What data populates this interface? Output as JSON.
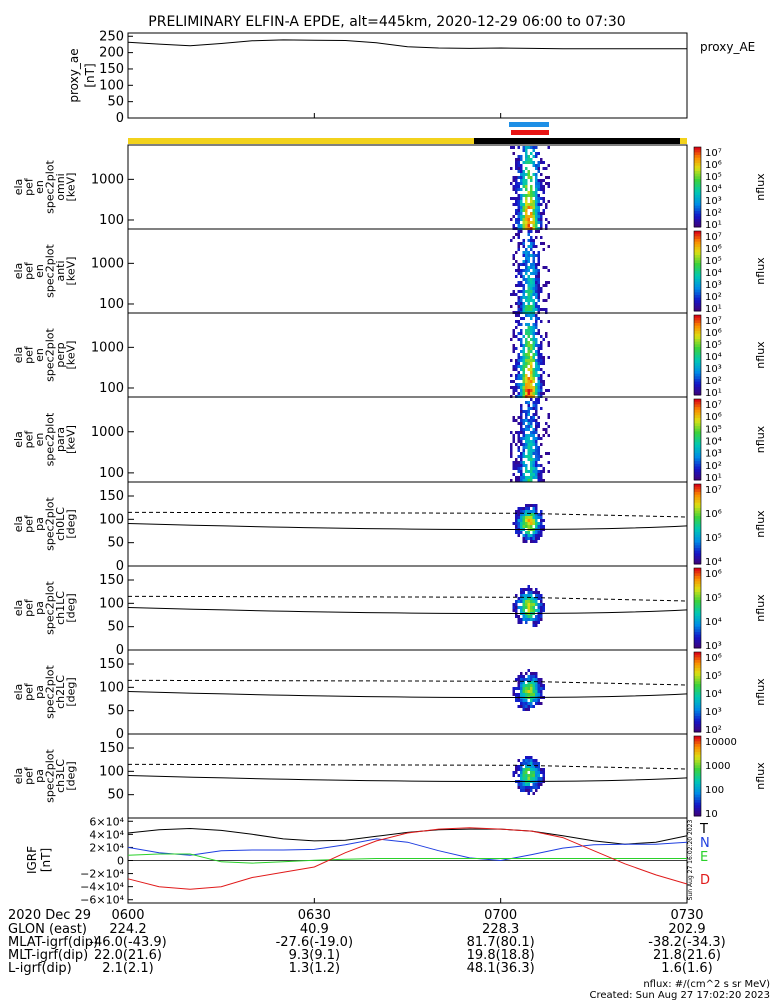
{
  "title": "PRELIMINARY ELFIN-A EPDE, alt=445km, 2020-12-29 06:00 to 07:30",
  "colors": {
    "status_yellow": "#f2d21c",
    "status_black": "#000000",
    "marker_blue": "#1e8fe6",
    "marker_red": "#e81414",
    "trace_black": "#000000",
    "trace_blue": "#1f3ee0",
    "trace_green": "#2ad12a",
    "trace_red": "#e01a1a"
  },
  "chart_data": [
    {
      "type": "line",
      "id": "proxy_ae",
      "ylabel": [
        "proxy_ae",
        "[nT]"
      ],
      "yticks": [
        "250",
        "200",
        "150",
        "100",
        "50",
        "0"
      ],
      "ylim": [
        0,
        260
      ],
      "legend": "proxy_AE",
      "x": [
        0,
        5,
        10,
        15,
        20,
        25,
        30,
        35,
        40,
        45,
        50,
        55,
        60,
        65,
        70,
        75,
        80,
        85,
        90
      ],
      "values": [
        232,
        226,
        221,
        228,
        236,
        239,
        238,
        237,
        230,
        218,
        214,
        213,
        214,
        213,
        212,
        212,
        212,
        212,
        212
      ]
    },
    {
      "type": "heatmap",
      "id": "spec_omni",
      "ylabel": [
        "ela",
        "pef",
        "en",
        "spec2plot",
        "omni",
        "[keV]"
      ],
      "yticks": [
        "1000",
        "100"
      ],
      "ylog": true,
      "colorbar": [
        "10⁷",
        "10⁶",
        "10⁵",
        "10⁴",
        "10³",
        "10²",
        "10¹"
      ],
      "colorbar_label": "nflux"
    },
    {
      "type": "heatmap",
      "id": "spec_anti",
      "ylabel": [
        "ela",
        "pef",
        "en",
        "spec2plot",
        "anti",
        "[keV]"
      ],
      "yticks": [
        "1000",
        "100"
      ],
      "ylog": true,
      "colorbar": [
        "10⁷",
        "10⁶",
        "10⁵",
        "10⁴",
        "10³",
        "10²",
        "10¹"
      ],
      "colorbar_label": "nflux"
    },
    {
      "type": "heatmap",
      "id": "spec_perp",
      "ylabel": [
        "ela",
        "pef",
        "en",
        "spec2plot",
        "perp",
        "[keV]"
      ],
      "yticks": [
        "1000",
        "100"
      ],
      "ylog": true,
      "colorbar": [
        "10⁷",
        "10⁶",
        "10⁵",
        "10⁴",
        "10³",
        "10²",
        "10¹"
      ],
      "colorbar_label": "nflux"
    },
    {
      "type": "heatmap",
      "id": "spec_para",
      "ylabel": [
        "ela",
        "pef",
        "en",
        "spec2plot",
        "para",
        "[keV]"
      ],
      "yticks": [
        "1000",
        "100"
      ],
      "ylog": true,
      "colorbar": [
        "10⁷",
        "10⁶",
        "10⁵",
        "10⁴",
        "10³",
        "10²",
        "10¹"
      ],
      "colorbar_label": "nflux"
    },
    {
      "type": "heatmap",
      "id": "pa_ch0",
      "ylabel": [
        "ela",
        "pef",
        "pa",
        "spec2plot",
        "ch0LC",
        "[deg]"
      ],
      "yticks": [
        "150",
        "100",
        "50",
        "0"
      ],
      "ylim": [
        0,
        180
      ],
      "colorbar": [
        "10⁷",
        "10⁶",
        "10⁵",
        "10⁴"
      ],
      "colorbar_label": "nflux"
    },
    {
      "type": "heatmap",
      "id": "pa_ch1",
      "ylabel": [
        "ela",
        "pef",
        "pa",
        "spec2plot",
        "ch1LC",
        "[deg]"
      ],
      "yticks": [
        "150",
        "100",
        "50",
        "0"
      ],
      "ylim": [
        0,
        180
      ],
      "colorbar": [
        "10⁶",
        "10⁵",
        "10⁴",
        "10³"
      ],
      "colorbar_label": "nflux"
    },
    {
      "type": "heatmap",
      "id": "pa_ch2",
      "ylabel": [
        "ela",
        "pef",
        "pa",
        "spec2plot",
        "ch2LC",
        "[deg]"
      ],
      "yticks": [
        "150",
        "100",
        "50",
        "0"
      ],
      "ylim": [
        0,
        180
      ],
      "colorbar": [
        "10⁶",
        "10⁵",
        "10⁴",
        "10³",
        "10²"
      ],
      "colorbar_label": "nflux"
    },
    {
      "type": "heatmap",
      "id": "pa_ch3",
      "ylabel": [
        "ela",
        "pef",
        "pa",
        "spec2plot",
        "ch3LC",
        "[deg]"
      ],
      "yticks": [
        "150",
        "100",
        "50"
      ],
      "ylim": [
        0,
        180
      ],
      "colorbar": [
        "10000",
        "1000",
        "100",
        "10"
      ],
      "colorbar_label": "nflux"
    },
    {
      "type": "line",
      "id": "igrf",
      "ylabel": [
        "IGRF",
        "[nT]"
      ],
      "yticks": [
        "6×10⁴",
        "4×10⁴",
        "2×10⁴",
        "0",
        "−2×10⁴",
        "−4×10⁴",
        "−6×10⁴"
      ],
      "ylim": [
        -65000,
        65000
      ],
      "legend": [
        "T",
        "N",
        "E",
        "D"
      ],
      "side_text": "Sun Aug 27 16:02:20 2023",
      "x": [
        0,
        5,
        10,
        15,
        20,
        25,
        30,
        35,
        40,
        45,
        50,
        55,
        60,
        65,
        70,
        75,
        80,
        85,
        90
      ],
      "series": [
        {
          "name": "T",
          "values": [
            42000,
            47000,
            49000,
            46000,
            40000,
            33000,
            30000,
            31000,
            37000,
            43000,
            47000,
            48000,
            48000,
            45000,
            38000,
            30000,
            25000,
            28000,
            38000
          ]
        },
        {
          "name": "N",
          "values": [
            20000,
            12000,
            8000,
            15000,
            16000,
            16000,
            17000,
            24000,
            33000,
            28000,
            15000,
            4000,
            0,
            9000,
            19000,
            24000,
            25000,
            25000,
            28000
          ]
        },
        {
          "name": "E",
          "values": [
            8000,
            10000,
            10000,
            -2000,
            -4000,
            -2000,
            500,
            2000,
            3000,
            3000,
            3000,
            3000,
            3000,
            3000,
            3000,
            3000,
            3000,
            3000,
            3000
          ]
        },
        {
          "name": "D",
          "values": [
            -28000,
            -40000,
            -44000,
            -40000,
            -26000,
            -18000,
            -10000,
            12000,
            30000,
            42000,
            48000,
            50000,
            48000,
            45000,
            35000,
            15000,
            -5000,
            -22000,
            -36000
          ]
        }
      ]
    }
  ],
  "xaxis": {
    "ticks": [
      "0600",
      "0630",
      "0700",
      "0730"
    ],
    "tick_values": [
      0,
      30,
      60,
      90
    ],
    "rows": [
      {
        "label": "2020 Dec 29",
        "values": [
          "",
          "",
          "",
          ""
        ]
      },
      {
        "label": "GLON (east)",
        "values": [
          "224.2",
          "40.9",
          "228.3",
          "202.9"
        ]
      },
      {
        "label": "MLAT-igrf(dip)",
        "values": [
          "-46.0(-43.9)",
          "-27.6(-19.0)",
          "81.7(80.1)",
          "-38.2(-34.3)"
        ]
      },
      {
        "label": "MLT-igrf(dip)",
        "values": [
          "22.0(21.6)",
          "9.3(9.1)",
          "19.8(18.8)",
          "21.8(21.6)"
        ]
      },
      {
        "label": "L-igrf(dip)",
        "values": [
          "2.1(2.1)",
          "1.3(1.2)",
          "48.1(36.3)",
          "1.6(1.6)"
        ]
      }
    ]
  },
  "footer": {
    "units": "nflux: #/(cm^2 s sr MeV)",
    "created": "Created: Sun Aug 27 17:02:20 2023"
  }
}
